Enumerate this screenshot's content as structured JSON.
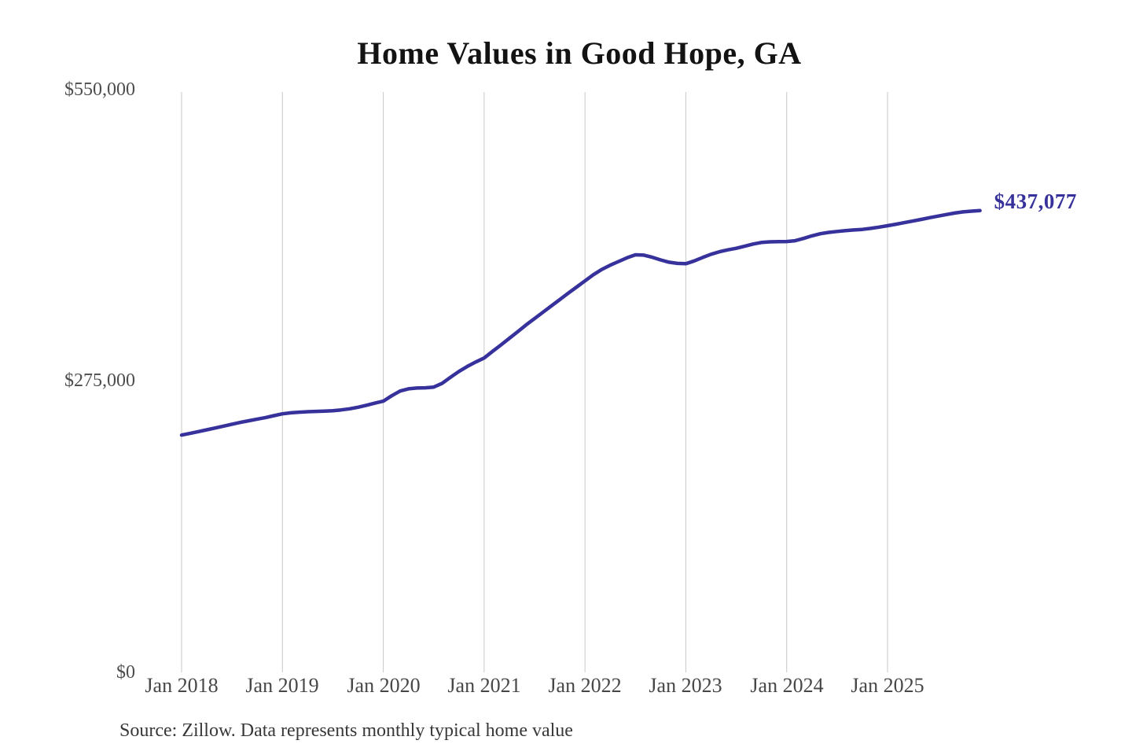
{
  "page": {
    "background_color": "#ffffff"
  },
  "title": "Home Values in Good Hope, GA",
  "source_note": "Source: Zillow. Data represents monthly typical home value",
  "end_label": "$437,077",
  "colors": {
    "line": "#37329b",
    "end_label": "#37329b",
    "gridline": "#c9c9c9",
    "title": "#131313",
    "axis_tick_text": "#4d4d4d",
    "source_text": "#383838"
  },
  "chart_data": {
    "type": "line",
    "title": "Home Values in Good Hope, GA",
    "series_name": "Monthly typical home value (ZHVI)",
    "unit": "USD",
    "legend": "none",
    "grid": "vertical-only",
    "ylim": [
      0,
      550000
    ],
    "y_tick_labels": [
      "$550,000",
      "$275,000",
      "$0"
    ],
    "y_tick_values": [
      550000,
      275000,
      0
    ],
    "x_tick_labels": [
      "Jan 2018",
      "Jan 2019",
      "Jan 2020",
      "Jan 2021",
      "Jan 2022",
      "Jan 2023",
      "Jan 2024",
      "Jan 2025"
    ],
    "end_label": "$437,077",
    "final_value": 437077,
    "months": [
      "2018-01",
      "2018-02",
      "2018-03",
      "2018-04",
      "2018-05",
      "2018-06",
      "2018-07",
      "2018-08",
      "2018-09",
      "2018-10",
      "2018-11",
      "2018-12",
      "2019-01",
      "2019-02",
      "2019-03",
      "2019-04",
      "2019-05",
      "2019-06",
      "2019-07",
      "2019-08",
      "2019-09",
      "2019-10",
      "2019-11",
      "2019-12",
      "2020-01",
      "2020-02",
      "2020-03",
      "2020-04",
      "2020-05",
      "2020-06",
      "2020-07",
      "2020-08",
      "2020-09",
      "2020-10",
      "2020-11",
      "2020-12",
      "2021-01",
      "2021-02",
      "2021-03",
      "2021-04",
      "2021-05",
      "2021-06",
      "2021-07",
      "2021-08",
      "2021-09",
      "2021-10",
      "2021-11",
      "2021-12",
      "2022-01",
      "2022-02",
      "2022-03",
      "2022-04",
      "2022-05",
      "2022-06",
      "2022-07",
      "2022-08",
      "2022-09",
      "2022-10",
      "2022-11",
      "2022-12",
      "2023-01",
      "2023-02",
      "2023-03",
      "2023-04",
      "2023-05",
      "2023-06",
      "2023-07",
      "2023-08",
      "2023-09",
      "2023-10",
      "2023-11",
      "2023-12",
      "2024-01",
      "2024-02",
      "2024-03",
      "2024-04",
      "2024-05",
      "2024-06",
      "2024-07",
      "2024-08",
      "2024-09",
      "2024-10",
      "2024-11",
      "2024-12",
      "2025-01",
      "2025-02",
      "2025-03",
      "2025-04",
      "2025-05",
      "2025-06",
      "2025-07",
      "2025-08",
      "2025-09",
      "2025-10",
      "2025-11",
      "2025-12"
    ],
    "values": [
      224800,
      226400,
      228100,
      229800,
      231500,
      233300,
      235100,
      236800,
      238400,
      239900,
      241400,
      243200,
      244900,
      245900,
      246500,
      246900,
      247200,
      247500,
      247900,
      248600,
      249700,
      251200,
      253000,
      255000,
      256900,
      262000,
      266500,
      268600,
      269300,
      269500,
      270200,
      273800,
      279500,
      285000,
      289800,
      293900,
      297700,
      304000,
      310100,
      316300,
      322600,
      329000,
      335000,
      341000,
      347000,
      353000,
      359000,
      364800,
      370600,
      376500,
      381500,
      385500,
      389000,
      392500,
      395300,
      395000,
      393000,
      390500,
      388300,
      387200,
      386900,
      389500,
      392800,
      395800,
      398200,
      400000,
      401500,
      403400,
      405500,
      407000,
      407600,
      407700,
      407900,
      408600,
      410800,
      413200,
      415200,
      416500,
      417400,
      418200,
      418800,
      419300,
      420300,
      421500,
      422800,
      424200,
      425700,
      427200,
      428800,
      430400,
      431900,
      433400,
      434800,
      435900,
      436600,
      437077
    ]
  },
  "plot_geometry_note": "y axis: $0 at bottom, $550,000 at top; vertical gridlines at each January"
}
